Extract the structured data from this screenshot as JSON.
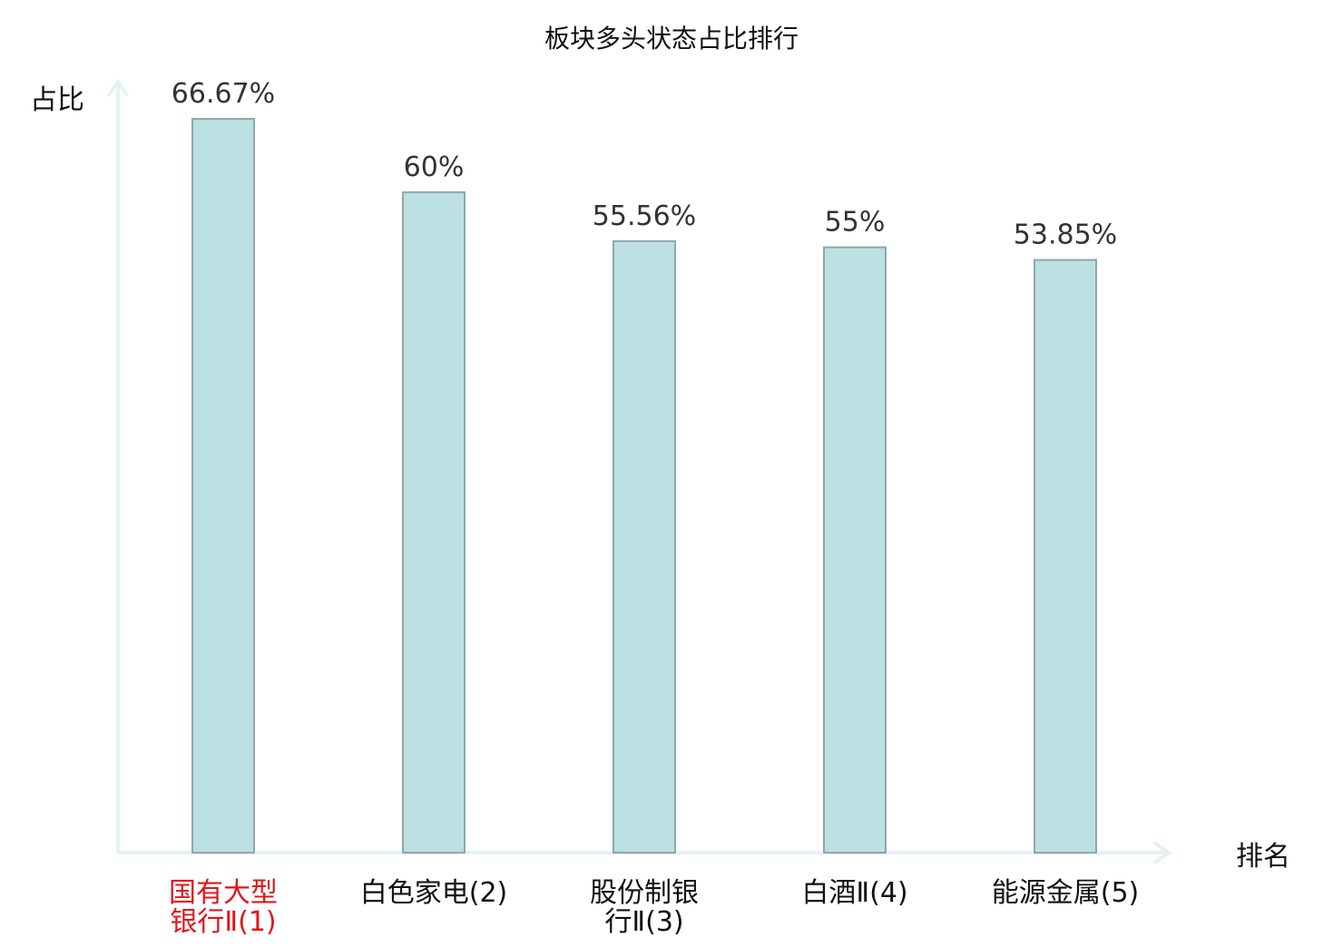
{
  "chart_data": {
    "type": "bar",
    "title": "板块多头状态占比排行",
    "ylabel": "占比",
    "xlabel": "排名",
    "categories": [
      [
        "国有大型",
        "银行Ⅱ(1)"
      ],
      [
        "白色家电(2)"
      ],
      [
        "股份制银",
        "行Ⅱ(3)"
      ],
      [
        "白酒Ⅱ(4)"
      ],
      [
        "能源金属(5)"
      ]
    ],
    "values": [
      66.67,
      60,
      55.56,
      55,
      53.85
    ],
    "value_labels": [
      "66.67%",
      "60%",
      "55.56%",
      "55%",
      "53.85%"
    ],
    "ylim": [
      0,
      66.67
    ],
    "grid": false,
    "highlight_index": 0,
    "colors": {
      "bar_fill": "#bde0e2",
      "bar_stroke": "#8fa8aa",
      "axis": "#e3f3f1",
      "highlight_label": "#e0161b",
      "label": "#111111",
      "value_label": "#333333"
    }
  }
}
